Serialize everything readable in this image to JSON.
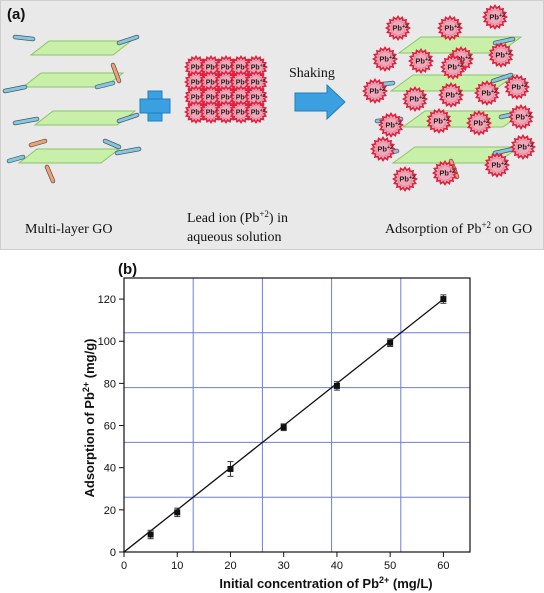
{
  "panel_a": {
    "tag": "(a)",
    "label_left": "Multi-layer GO",
    "label_middle_line1": "Lead ion (Pb",
    "label_middle_sup": "+2",
    "label_middle_line1_end": ") in",
    "label_middle_line2": "aqueous solution",
    "arrow_label": "Shaking",
    "label_right": "Adsorption of Pb",
    "label_right_sup": "+2",
    "label_right_end": " on GO",
    "ion_text": "Pb",
    "ion_sup": "+2",
    "colors": {
      "sheet": "#c9f0a8",
      "sheet_edge": "#8bc46a",
      "ion": "#f2a7b8",
      "ion_edge": "#e0203c",
      "plus": "#3aa0e0",
      "arrow": "#3aa0e0",
      "chain_blue": "#7ec8e8",
      "chain_orange": "#f0a070"
    }
  },
  "panel_b": {
    "tag": "(b)"
  },
  "chart_data": {
    "type": "scatter",
    "x": [
      5,
      10,
      20,
      30,
      40,
      50,
      60
    ],
    "y": [
      8.3,
      18.8,
      39.4,
      59.2,
      78.8,
      99.3,
      120.0
    ],
    "y_err": [
      2.0,
      2.0,
      3.5,
      1.6,
      2.0,
      1.8,
      2.0
    ],
    "fit_line": {
      "x": [
        0,
        60
      ],
      "y": [
        0,
        120
      ]
    },
    "xlabel_pre": "Initial concentration of Pb",
    "xlabel_sup": "2+",
    "xlabel_post": " (mg/L)",
    "ylabel_pre": "Adsorption of Pb",
    "ylabel_sup": "2+",
    "ylabel_post": " (mg/g)",
    "xlim": [
      0,
      65
    ],
    "ylim": [
      0,
      130
    ],
    "xticks": [
      0,
      10,
      20,
      30,
      40,
      50,
      60
    ],
    "yticks": [
      0,
      20,
      40,
      60,
      80,
      100,
      120
    ],
    "grid": true,
    "colors": {
      "grid": "#6a7fe0",
      "marker": "#111111",
      "line": "#111111"
    }
  }
}
